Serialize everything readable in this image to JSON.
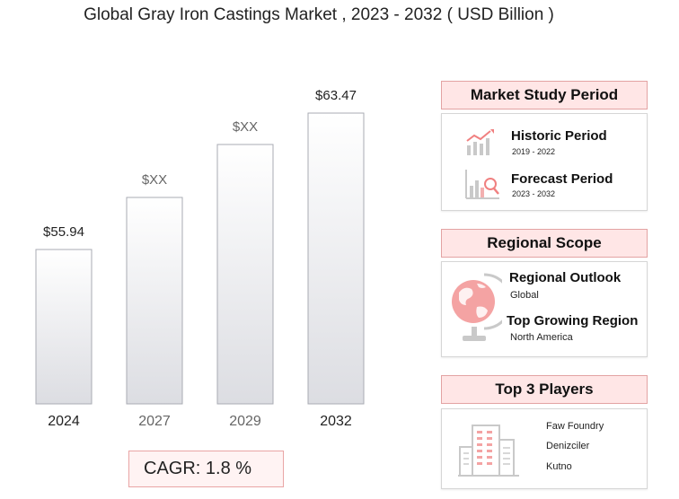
{
  "title": "Global Gray Iron Castings Market , 2023 - 2032 ( USD Billion )",
  "chart_data": {
    "type": "bar",
    "categories": [
      "2024",
      "2027",
      "2029",
      "2032"
    ],
    "values": [
      55.94,
      null,
      null,
      63.47
    ],
    "value_labels": [
      "$55.94",
      "$XX",
      "$XX",
      "$63.47"
    ],
    "title": "Global Gray Iron Castings Market , 2023 - 2032 ( USD Billion )",
    "xlabel": "",
    "ylabel": "",
    "grid": false,
    "axis_visible": false
  },
  "cagr": "CAGR: 1.8 %",
  "market_study": {
    "header": "Market Study Period",
    "historic_title": "Historic Period",
    "historic_range": "2019 - 2022",
    "forecast_title": "Forecast Period",
    "forecast_range": "2023 - 2032"
  },
  "regional": {
    "header": "Regional Scope",
    "outlook_title": "Regional Outlook",
    "outlook_value": "Global",
    "growing_title": "Top Growing Region",
    "growing_value": "North America"
  },
  "players": {
    "header": "Top 3 Players",
    "list": [
      "Faw Foundry",
      "Denizciler",
      "Kutno"
    ]
  },
  "colors": {
    "accent": "#f08080",
    "header_bg": "#ffe6e6",
    "bar_fill": "#eeeff2",
    "bar_stroke": "#a9abb3"
  }
}
